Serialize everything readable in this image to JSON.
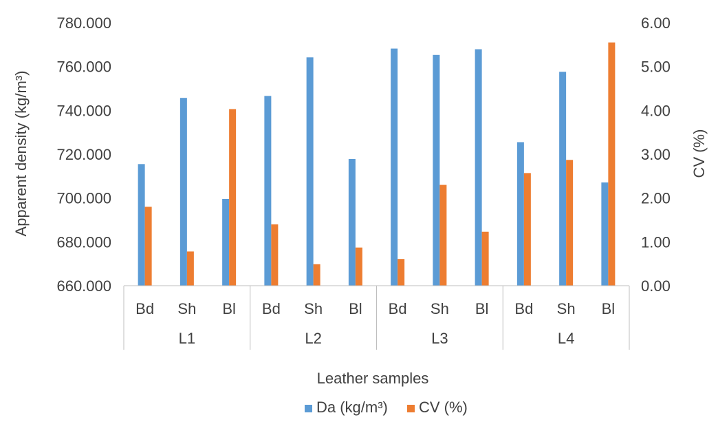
{
  "chart_data": {
    "type": "bar",
    "xlabel": "Leather samples",
    "ylabel": "Apparent density (kg/m³)",
    "y2label": "CV (%)",
    "groups": [
      "L1",
      "L2",
      "L3",
      "L4"
    ],
    "categories": [
      "Bd",
      "Sh",
      "Bl",
      "Bd",
      "Sh",
      "Bl",
      "Bd",
      "Sh",
      "Bl",
      "Bd",
      "Sh",
      "Bl"
    ],
    "ylim": [
      660,
      780
    ],
    "y2lim": [
      0,
      6
    ],
    "yticks": [
      "660.000",
      "680.000",
      "700.000",
      "720.000",
      "740.000",
      "760.000",
      "780.000"
    ],
    "y2ticks": [
      "0.00",
      "1.00",
      "2.00",
      "3.00",
      "4.00",
      "5.00",
      "6.00"
    ],
    "series": [
      {
        "name": "Da (kg/m³)",
        "axis": "left",
        "color": "#5B9BD5",
        "values": [
          715.5,
          745.7,
          699.6,
          746.6,
          764.2,
          717.8,
          768.2,
          765.3,
          767.9,
          725.5,
          757.6,
          707.1
        ]
      },
      {
        "name": "CV (%)",
        "axis": "right",
        "color": "#ED7D31",
        "values": [
          1.8,
          0.78,
          4.03,
          1.4,
          0.49,
          0.87,
          0.61,
          2.3,
          1.23,
          2.57,
          2.87,
          5.55
        ]
      }
    ],
    "grid": false,
    "legend": "bottom"
  }
}
